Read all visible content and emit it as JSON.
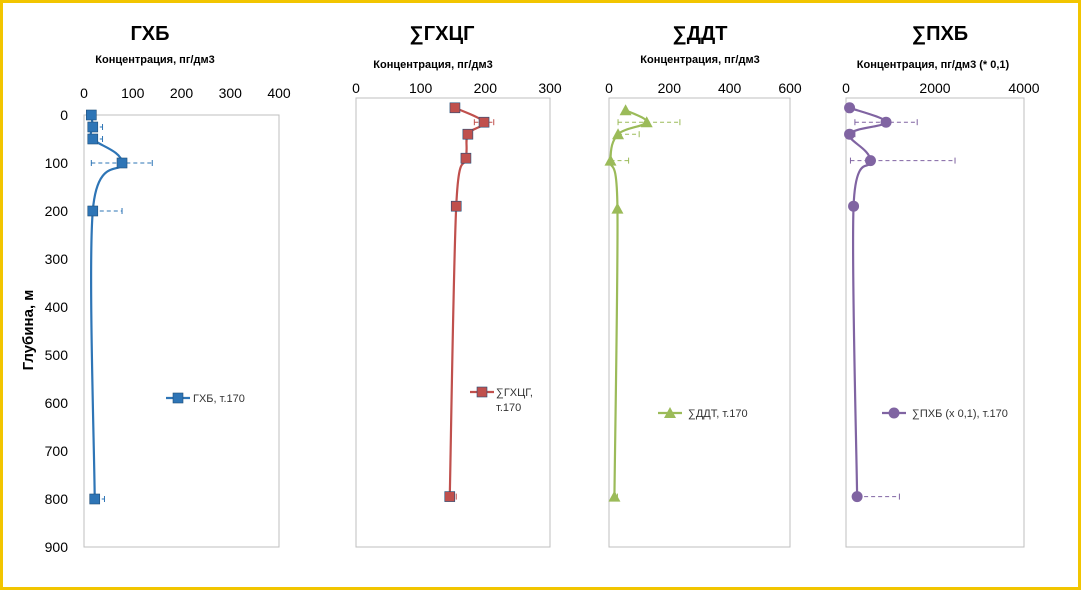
{
  "y_axis": {
    "label": "Глубина, м",
    "ticks": [
      0,
      100,
      200,
      300,
      400,
      500,
      600,
      700,
      800,
      900
    ]
  },
  "chart_data": [
    {
      "type": "line",
      "title": "ГХБ",
      "xlabel": "Концентрация, пг/дм3",
      "xlim": [
        0,
        400
      ],
      "xticks": [
        0,
        100,
        200,
        300,
        400
      ],
      "ylim": [
        0,
        900
      ],
      "color": "#2e75b6",
      "marker": "square",
      "series": [
        {
          "name": "ГХБ, т.170",
          "points": [
            {
              "y": 0,
              "x": 15,
              "err_minus": 0,
              "err_plus": 0
            },
            {
              "y": 25,
              "x": 18,
              "err_minus": 0,
              "err_plus": 20
            },
            {
              "y": 50,
              "x": 18,
              "err_minus": 0,
              "err_plus": 20
            },
            {
              "y": 100,
              "x": 78,
              "err_minus": 63,
              "err_plus": 62
            },
            {
              "y": 200,
              "x": 18,
              "err_minus": 0,
              "err_plus": 60
            },
            {
              "y": 800,
              "x": 22,
              "err_minus": 0,
              "err_plus": 20
            }
          ]
        }
      ]
    },
    {
      "type": "line",
      "title": "∑ГХЦГ",
      "xlabel": "Концентрация, пг/дм3",
      "xlim": [
        0,
        300
      ],
      "xticks": [
        0,
        100,
        200,
        300
      ],
      "ylim": [
        0,
        900
      ],
      "color": "#c0504d",
      "marker": "square",
      "series": [
        {
          "name": "∑ГХЦГ, т.170",
          "points": [
            {
              "y": -15,
              "x": 153,
              "err_minus": 0,
              "err_plus": 0
            },
            {
              "y": 15,
              "x": 198,
              "err_minus": 15,
              "err_plus": 15
            },
            {
              "y": 40,
              "x": 173,
              "err_minus": 0,
              "err_plus": 0
            },
            {
              "y": 90,
              "x": 170,
              "err_minus": 0,
              "err_plus": 0
            },
            {
              "y": 190,
              "x": 155,
              "err_minus": 0,
              "err_plus": 0
            },
            {
              "y": 795,
              "x": 145,
              "err_minus": 0,
              "err_plus": 10
            }
          ]
        }
      ]
    },
    {
      "type": "line",
      "title": "∑ДДТ",
      "xlabel": "Концентрация, пг/дм3",
      "xlim": [
        0,
        600
      ],
      "xticks": [
        0,
        200,
        400,
        600
      ],
      "ylim": [
        0,
        900
      ],
      "color": "#9bbb59",
      "marker": "triangle",
      "series": [
        {
          "name": "∑ДДТ, т.170",
          "points": [
            {
              "y": -10,
              "x": 55,
              "err_minus": 0,
              "err_plus": 0
            },
            {
              "y": 15,
              "x": 125,
              "err_minus": 95,
              "err_plus": 110
            },
            {
              "y": 40,
              "x": 30,
              "err_minus": 0,
              "err_plus": 70
            },
            {
              "y": 95,
              "x": 5,
              "err_minus": 0,
              "err_plus": 60
            },
            {
              "y": 195,
              "x": 28,
              "err_minus": 0,
              "err_plus": 0
            },
            {
              "y": 795,
              "x": 18,
              "err_minus": 0,
              "err_plus": 10
            }
          ]
        }
      ]
    },
    {
      "type": "line",
      "title": "∑ПХБ",
      "xlabel": "Концентрация, пг/дм3 (* 0,1)",
      "xlim": [
        0,
        4000
      ],
      "xticks": [
        0,
        2000,
        4000
      ],
      "ylim": [
        0,
        900
      ],
      "color": "#8064a2",
      "marker": "circle",
      "series": [
        {
          "name": "∑ПХБ (х 0,1), т.170",
          "points": [
            {
              "y": -15,
              "x": 80,
              "err_minus": 0,
              "err_plus": 0
            },
            {
              "y": 15,
              "x": 900,
              "err_minus": 700,
              "err_plus": 700
            },
            {
              "y": 40,
              "x": 80,
              "err_minus": 0,
              "err_plus": 120
            },
            {
              "y": 95,
              "x": 550,
              "err_minus": 450,
              "err_plus": 1900
            },
            {
              "y": 190,
              "x": 170,
              "err_minus": 0,
              "err_plus": 0
            },
            {
              "y": 795,
              "x": 250,
              "err_minus": 0,
              "err_plus": 950
            }
          ]
        }
      ]
    }
  ]
}
